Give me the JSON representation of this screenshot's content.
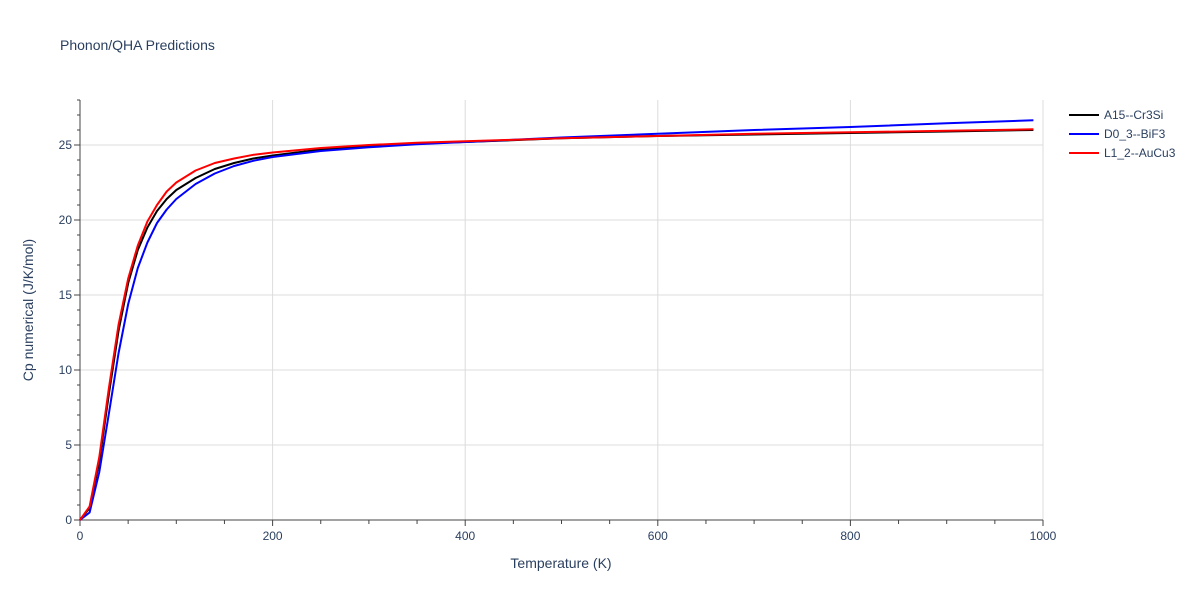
{
  "chart_data": {
    "type": "line",
    "title": "Phonon/QHA Predictions",
    "xlabel": "Temperature (K)",
    "ylabel": "Cp numerical (J/K/mol)",
    "xlim": [
      0,
      1000
    ],
    "ylim": [
      0,
      28
    ],
    "xticks": [
      0,
      200,
      400,
      600,
      800,
      1000
    ],
    "yticks": [
      0,
      5,
      10,
      15,
      20,
      25
    ],
    "grid": true,
    "legend_position": "top-right",
    "series": [
      {
        "name": "A15--Cr3Si",
        "color": "#000000",
        "x": [
          0,
          10,
          20,
          30,
          40,
          50,
          60,
          70,
          80,
          90,
          100,
          120,
          140,
          160,
          180,
          200,
          250,
          300,
          350,
          400,
          500,
          600,
          700,
          800,
          900,
          990
        ],
        "y": [
          0,
          0.8,
          3.9,
          8.4,
          12.6,
          15.8,
          18.0,
          19.5,
          20.6,
          21.4,
          22.0,
          22.8,
          23.4,
          23.8,
          24.1,
          24.3,
          24.7,
          24.9,
          25.1,
          25.2,
          25.45,
          25.6,
          25.7,
          25.8,
          25.9,
          26.0
        ]
      },
      {
        "name": "D0_3--BiF3",
        "color": "#0000ff",
        "x": [
          0,
          10,
          20,
          30,
          40,
          50,
          60,
          70,
          80,
          90,
          100,
          120,
          140,
          160,
          180,
          200,
          250,
          300,
          350,
          400,
          500,
          600,
          700,
          800,
          900,
          990
        ],
        "y": [
          0,
          0.5,
          3.2,
          7.1,
          11.1,
          14.4,
          16.8,
          18.5,
          19.8,
          20.7,
          21.4,
          22.4,
          23.1,
          23.6,
          23.95,
          24.2,
          24.6,
          24.85,
          25.05,
          25.2,
          25.5,
          25.75,
          26.0,
          26.2,
          26.45,
          26.65
        ]
      },
      {
        "name": "L1_2--AuCu3",
        "color": "#ff0000",
        "x": [
          0,
          10,
          20,
          30,
          40,
          50,
          60,
          70,
          80,
          90,
          100,
          120,
          140,
          160,
          180,
          200,
          250,
          300,
          350,
          400,
          500,
          600,
          700,
          800,
          900,
          990
        ],
        "y": [
          0,
          0.9,
          4.2,
          8.8,
          13.0,
          16.1,
          18.3,
          19.9,
          21.0,
          21.9,
          22.5,
          23.3,
          23.8,
          24.1,
          24.35,
          24.5,
          24.8,
          25.0,
          25.15,
          25.25,
          25.45,
          25.6,
          25.75,
          25.85,
          25.95,
          26.05
        ]
      }
    ]
  }
}
